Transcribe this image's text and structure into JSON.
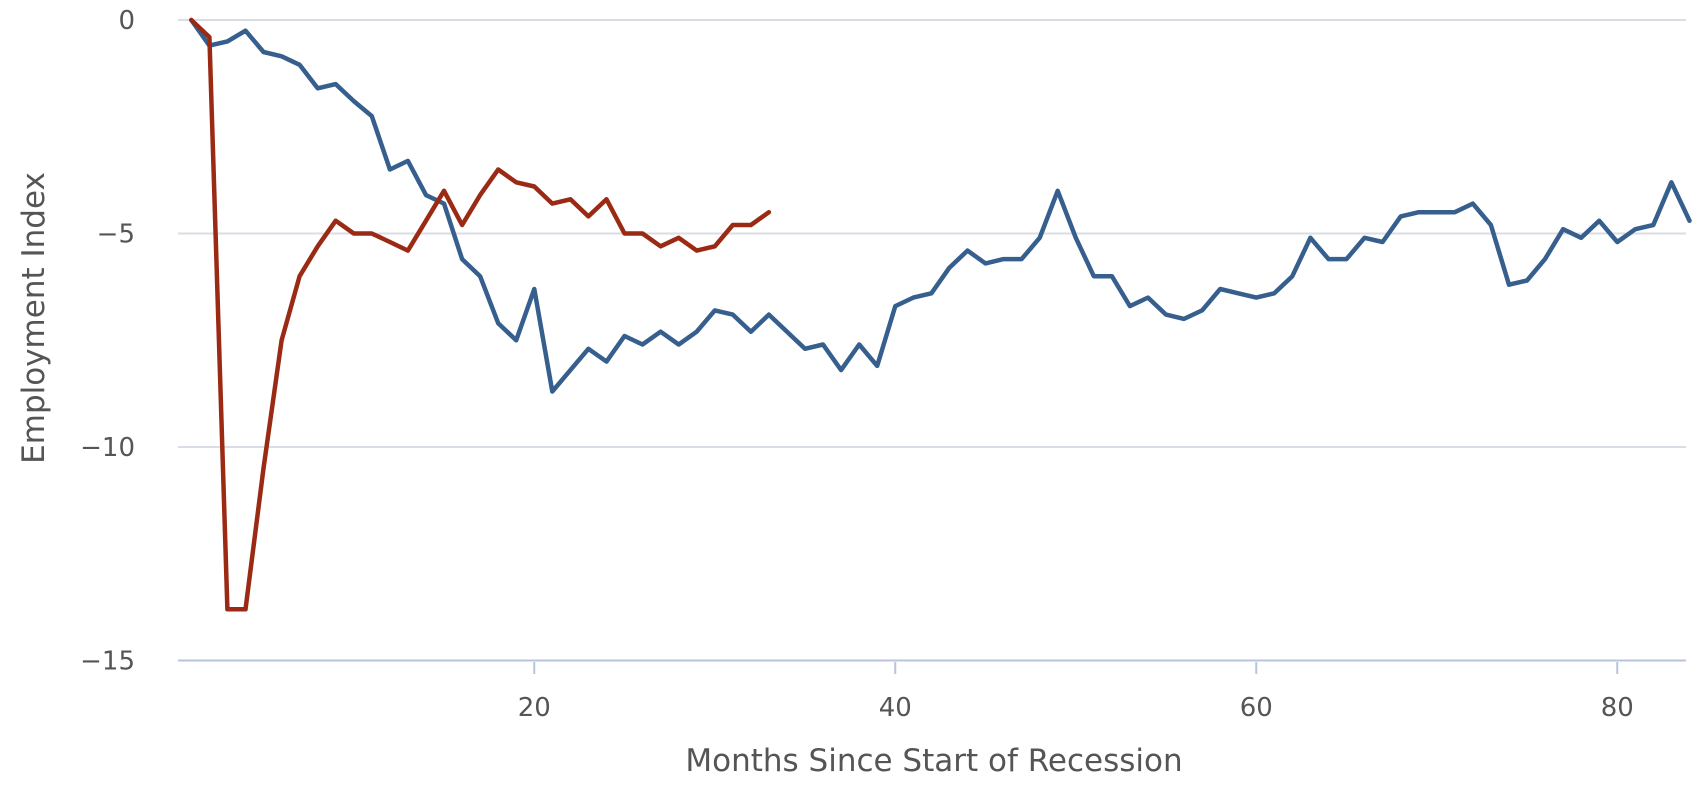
{
  "chart_data": {
    "type": "line",
    "title": "",
    "xlabel": "Months Since Start of Recession",
    "ylabel": "Employment Index",
    "xlim": [
      1,
      84
    ],
    "ylim": [
      -15,
      0
    ],
    "x_ticks": [
      20,
      40,
      60,
      80
    ],
    "y_ticks": [
      0,
      -5,
      -10,
      -15
    ],
    "y_tick_labels": [
      "0",
      "−5",
      "−10",
      "−15"
    ],
    "grid": true,
    "legend": "none",
    "series": [
      {
        "color": "#365f8e",
        "x": [
          1,
          2,
          3,
          4,
          5,
          6,
          7,
          8,
          9,
          10,
          11,
          12,
          13,
          14,
          15,
          16,
          17,
          18,
          19,
          20,
          21,
          22,
          23,
          24,
          25,
          26,
          27,
          28,
          29,
          30,
          31,
          32,
          33,
          34,
          35,
          36,
          37,
          38,
          39,
          40,
          41,
          42,
          43,
          44,
          45,
          46,
          47,
          48,
          49,
          50,
          51,
          52,
          53,
          54,
          55,
          56,
          57,
          58,
          59,
          60,
          61,
          62,
          63,
          64,
          65,
          66,
          67,
          68,
          69,
          70,
          71,
          72,
          73,
          74,
          75,
          76,
          77,
          78,
          79,
          80,
          81,
          82,
          83,
          84
        ],
        "y": [
          0,
          -0.6,
          -0.5,
          -0.25,
          -0.75,
          -0.85,
          -1.05,
          -1.6,
          -1.5,
          -1.9,
          -2.25,
          -3.5,
          -3.3,
          -4.1,
          -4.3,
          -5.6,
          -6.0,
          -7.1,
          -7.5,
          -6.3,
          -8.7,
          -8.2,
          -7.7,
          -8.0,
          -7.4,
          -7.6,
          -7.3,
          -7.6,
          -7.3,
          -6.8,
          -6.9,
          -7.3,
          -6.9,
          -7.3,
          -7.7,
          -7.6,
          -8.2,
          -7.6,
          -8.1,
          -6.7,
          -6.5,
          -6.4,
          -5.8,
          -5.4,
          -5.7,
          -5.6,
          -5.6,
          -5.1,
          -4.0,
          -5.1,
          -6.0,
          -6.0,
          -6.7,
          -6.5,
          -6.9,
          -7.0,
          -6.8,
          -6.3,
          -6.4,
          -6.5,
          -6.4,
          -6.0,
          -5.1,
          -5.6,
          -5.6,
          -5.1,
          -5.2,
          -4.6,
          -4.5,
          -4.5,
          -4.5,
          -4.3,
          -4.8,
          -6.2,
          -6.1,
          -5.6,
          -4.9,
          -5.1,
          -4.7,
          -5.2,
          -4.9,
          -4.8,
          -3.8,
          -4.7
        ]
      },
      {
        "color": "#9b2a14",
        "x": [
          1,
          2,
          3,
          4,
          5,
          6,
          7,
          8,
          9,
          10,
          11,
          12,
          13,
          14,
          15,
          16,
          17,
          18,
          19,
          20,
          21,
          22,
          23,
          24,
          25,
          26,
          27,
          28,
          29,
          30,
          31,
          32,
          33
        ],
        "y": [
          0,
          -0.4,
          -13.8,
          -13.8,
          -10.5,
          -7.5,
          -6.0,
          -5.3,
          -4.7,
          -5.0,
          -5.0,
          -5.2,
          -5.4,
          -4.7,
          -4.0,
          -4.8,
          -4.1,
          -3.5,
          -3.8,
          -3.9,
          -4.3,
          -4.2,
          -4.6,
          -4.2,
          -5.0,
          -5.0,
          -5.3,
          -5.1,
          -5.4,
          -5.3,
          -4.8,
          -4.8,
          -4.5
        ]
      }
    ]
  }
}
